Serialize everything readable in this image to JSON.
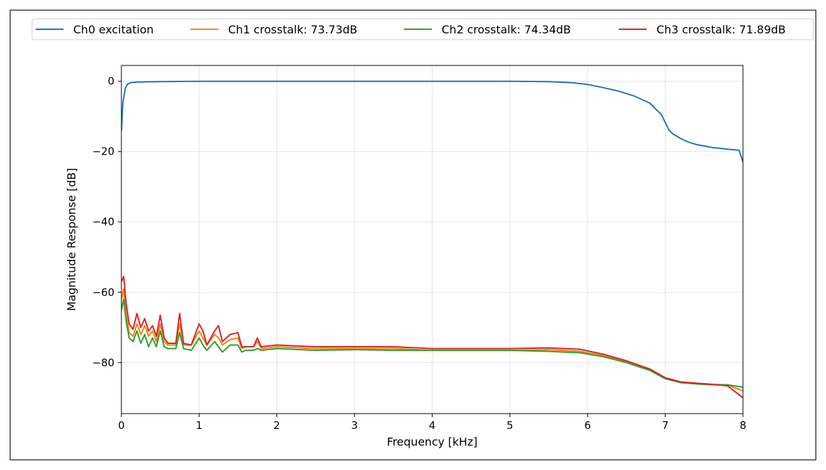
{
  "chart_data": {
    "type": "line",
    "title": "",
    "xlabel": "Frequency [kHz]",
    "ylabel": "Magnitude Response [dB]",
    "xlim": [
      0,
      8
    ],
    "ylim": [
      -94.5,
      4.5
    ],
    "xticks": [
      0,
      1,
      2,
      3,
      4,
      5,
      6,
      7,
      8
    ],
    "yticks": [
      0,
      -20,
      -40,
      -60,
      -80
    ],
    "xtick_labels": [
      "0",
      "1",
      "2",
      "3",
      "4",
      "5",
      "6",
      "7",
      "8"
    ],
    "ytick_labels": [
      "0",
      "−20",
      "−40",
      "−60",
      "−80"
    ],
    "grid": true,
    "legend_position": "top, outside plot, single row",
    "series": [
      {
        "name": "Ch0 excitation",
        "color": "#1f77b4",
        "x": [
          0,
          0.02,
          0.05,
          0.08,
          0.12,
          0.2,
          0.5,
          1,
          2,
          3,
          4,
          5,
          5.5,
          5.8,
          6.0,
          6.2,
          6.4,
          6.6,
          6.8,
          6.95,
          7.05,
          7.1,
          7.2,
          7.3,
          7.4,
          7.6,
          7.8,
          7.95,
          8.0
        ],
        "y": [
          -14,
          -6,
          -2,
          -0.8,
          -0.4,
          -0.2,
          -0.1,
          0,
          0,
          0,
          0,
          0,
          -0.1,
          -0.4,
          -0.9,
          -1.8,
          -2.8,
          -4.2,
          -6.2,
          -9.5,
          -14,
          -15,
          -16.3,
          -17.3,
          -18,
          -18.8,
          -19.3,
          -19.6,
          -23
        ]
      },
      {
        "name": "Ch1 crosstalk: 73.73dB",
        "color": "#ff7f0e",
        "x": [
          0,
          0.03,
          0.06,
          0.1,
          0.15,
          0.2,
          0.25,
          0.3,
          0.35,
          0.4,
          0.45,
          0.5,
          0.55,
          0.6,
          0.7,
          0.75,
          0.8,
          0.9,
          1.0,
          1.05,
          1.1,
          1.2,
          1.25,
          1.3,
          1.4,
          1.5,
          1.55,
          1.6,
          1.7,
          1.75,
          1.8,
          2.0,
          2.5,
          3.0,
          3.5,
          4.0,
          4.5,
          5.0,
          5.5,
          5.9,
          6.2,
          6.5,
          6.8,
          7.0,
          7.2,
          7.5,
          7.8,
          8.0
        ],
        "y": [
          -62,
          -59,
          -66,
          -71.5,
          -72.5,
          -69,
          -72,
          -69.5,
          -72.5,
          -71,
          -74,
          -69,
          -74,
          -75,
          -75,
          -69,
          -75,
          -75,
          -71,
          -73,
          -75,
          -72,
          -73,
          -75,
          -73.5,
          -73,
          -76,
          -75.5,
          -75.5,
          -74,
          -76,
          -75.5,
          -76,
          -76,
          -76,
          -76.5,
          -76.5,
          -76.5,
          -76.3,
          -76.8,
          -78,
          -79.8,
          -82,
          -84.5,
          -85.6,
          -86,
          -86.4,
          -88
        ]
      },
      {
        "name": "Ch2 crosstalk: 74.34dB",
        "color": "#2ca02c",
        "x": [
          0,
          0.03,
          0.06,
          0.1,
          0.15,
          0.2,
          0.25,
          0.3,
          0.35,
          0.4,
          0.45,
          0.5,
          0.55,
          0.6,
          0.7,
          0.75,
          0.8,
          0.9,
          1.0,
          1.05,
          1.1,
          1.2,
          1.25,
          1.3,
          1.4,
          1.5,
          1.55,
          1.6,
          1.7,
          1.75,
          1.8,
          2.0,
          2.5,
          3.0,
          3.5,
          4.0,
          4.5,
          5.0,
          5.5,
          5.9,
          6.2,
          6.5,
          6.8,
          7.0,
          7.2,
          7.5,
          7.8,
          8.0
        ],
        "y": [
          -65,
          -62,
          -68,
          -73,
          -74,
          -71,
          -74.5,
          -72,
          -75.5,
          -73,
          -75.5,
          -71,
          -75.5,
          -76,
          -76,
          -71.5,
          -76,
          -76.5,
          -73,
          -75,
          -76.5,
          -74,
          -75.5,
          -77,
          -75,
          -75,
          -77,
          -76.5,
          -76.5,
          -76,
          -76.5,
          -76,
          -76.5,
          -76.3,
          -76.5,
          -76.5,
          -76.5,
          -76.5,
          -76.8,
          -77.2,
          -78.3,
          -80,
          -82.2,
          -84.6,
          -85.7,
          -86.2,
          -86.3,
          -87
        ]
      },
      {
        "name": "Ch3 crosstalk: 71.89dB",
        "color": "#d62728",
        "x": [
          0,
          0.03,
          0.06,
          0.1,
          0.15,
          0.2,
          0.25,
          0.3,
          0.35,
          0.4,
          0.45,
          0.5,
          0.55,
          0.6,
          0.7,
          0.75,
          0.8,
          0.9,
          1.0,
          1.05,
          1.1,
          1.2,
          1.25,
          1.3,
          1.4,
          1.5,
          1.55,
          1.6,
          1.7,
          1.75,
          1.8,
          2.0,
          2.5,
          3.0,
          3.5,
          4.0,
          4.5,
          5.0,
          5.5,
          5.9,
          6.2,
          6.5,
          6.8,
          7.0,
          7.2,
          7.5,
          7.8,
          8.0
        ],
        "y": [
          -57,
          -55.5,
          -63,
          -69,
          -70.5,
          -66,
          -70,
          -67.5,
          -71,
          -69.5,
          -72.5,
          -66.5,
          -73,
          -74.5,
          -74.5,
          -66,
          -74.5,
          -75,
          -69,
          -71,
          -75,
          -71,
          -69.5,
          -74,
          -72,
          -71.5,
          -75.5,
          -75.5,
          -75.5,
          -73,
          -75.5,
          -75,
          -75.5,
          -75.5,
          -75.5,
          -76,
          -76,
          -76,
          -75.8,
          -76.2,
          -77.6,
          -79.5,
          -81.8,
          -84.3,
          -85.5,
          -86,
          -86.6,
          -90
        ]
      }
    ]
  }
}
